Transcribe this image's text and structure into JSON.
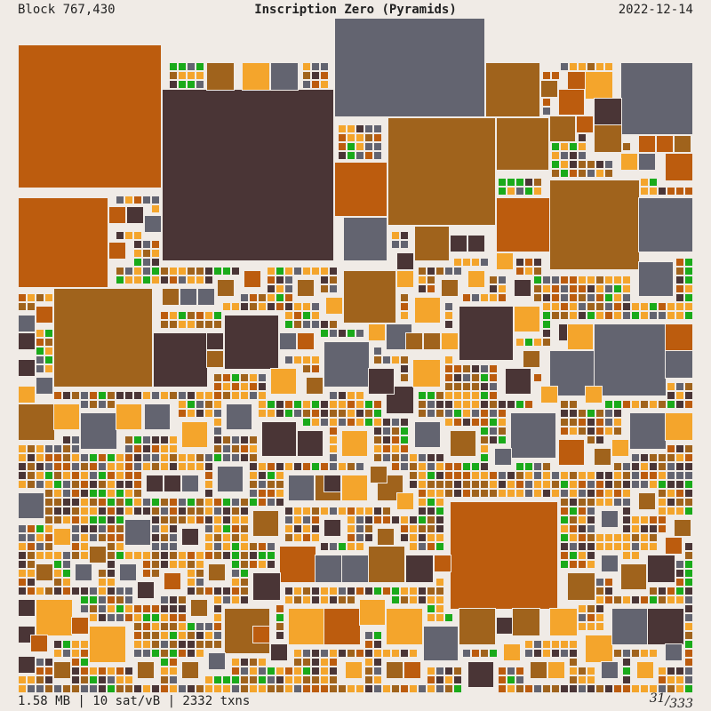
{
  "header": {
    "block_label": "Block 767,430",
    "title": "Inscription Zero (Pyramids)",
    "date": "2022-12-14"
  },
  "footer": {
    "stats": "1.58 MB | 10 sat/vB | 2332 txns",
    "page_current": "31",
    "page_separator": "/",
    "page_total": "333"
  },
  "palette": {
    "background": "#f0ebe6",
    "stroke": "#f0ebe6",
    "dark_brown": "#4a3536",
    "slate_gray": "#636470",
    "burnt_orange": "#bc5c0e",
    "ochre": "#a0631c",
    "amber": "#f4a52c",
    "green": "#1aaa1a"
  }
}
